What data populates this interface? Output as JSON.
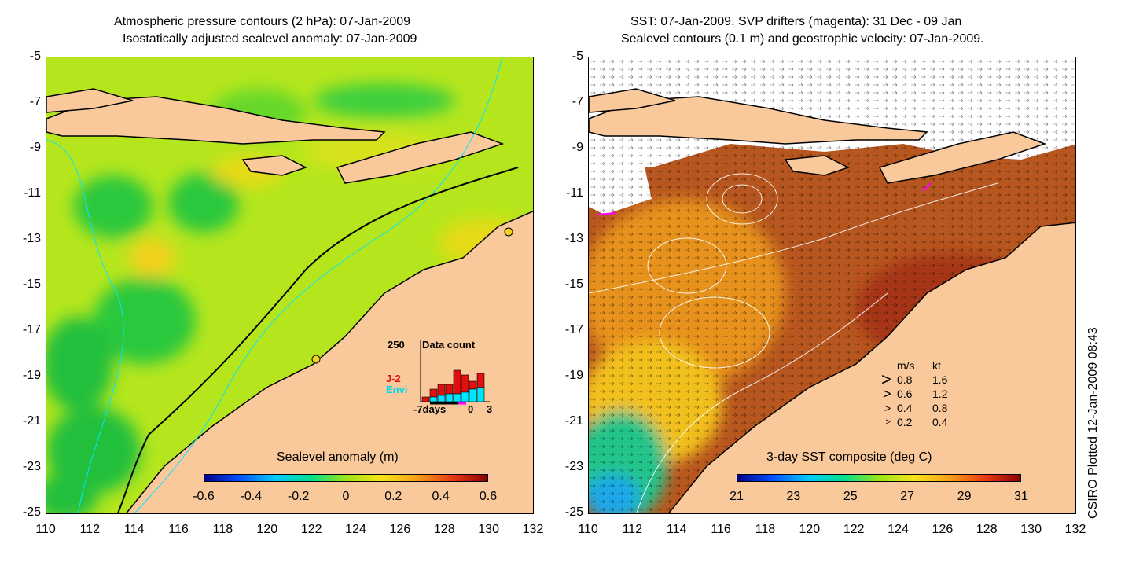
{
  "left_map": {
    "title_line1": "Atmospheric pressure contours (2 hPa): 07-Jan-2009",
    "title_line2": "Isostatically adjusted sealevel anomaly: 07-Jan-2009",
    "y_ticks": [
      "-5",
      "-7",
      "-9",
      "-11",
      "-13",
      "-15",
      "-17",
      "-19",
      "-21",
      "-23",
      "-25"
    ],
    "x_ticks": [
      "110",
      "112",
      "114",
      "116",
      "118",
      "120",
      "122",
      "124",
      "126",
      "128",
      "130",
      "132"
    ],
    "colorbar": {
      "title": "Sealevel anomaly (m)",
      "ticks": [
        "-0.6",
        "-0.4",
        "-0.2",
        "0",
        "0.2",
        "0.4",
        "0.6"
      ]
    },
    "histogram": {
      "count_label": "250",
      "title": "Data count",
      "legend_j2": "J-2",
      "legend_envi": "Envi",
      "x_start": "-7days",
      "x_zero": "0",
      "x_end": "3",
      "j2_color": "#e01010",
      "envi_color": "#00e5ff"
    }
  },
  "right_map": {
    "title_line1": "SST: 07-Jan-2009. SVP drifters (magenta): 31 Dec - 09 Jan",
    "title_line2": "Sealevel contours (0.1 m) and geostrophic velocity: 07-Jan-2009.",
    "y_ticks": [
      "-5",
      "-7",
      "-9",
      "-11",
      "-13",
      "-15",
      "-17",
      "-19",
      "-21",
      "-23",
      "-25"
    ],
    "x_ticks": [
      "110",
      "112",
      "114",
      "116",
      "118",
      "120",
      "122",
      "124",
      "126",
      "128",
      "130",
      "132"
    ],
    "colorbar": {
      "title": "3-day SST composite (deg C)",
      "ticks": [
        "21",
        "23",
        "25",
        "27",
        "29",
        "31"
      ]
    },
    "velocity_legend": {
      "header_ms": "m/s",
      "header_kt": "kt",
      "rows": [
        {
          "ms": "0.8",
          "kt": "1.6"
        },
        {
          "ms": "0.6",
          "kt": "1.2"
        },
        {
          "ms": "0.4",
          "kt": "0.8"
        },
        {
          "ms": "0.2",
          "kt": "0.4"
        }
      ]
    }
  },
  "credit": "CSIRO Plotted 12-Jan-2009 08:43",
  "colors": {
    "land": "#f9c89b",
    "drifter": "#ff00ff",
    "contour": "#00e5ff"
  }
}
